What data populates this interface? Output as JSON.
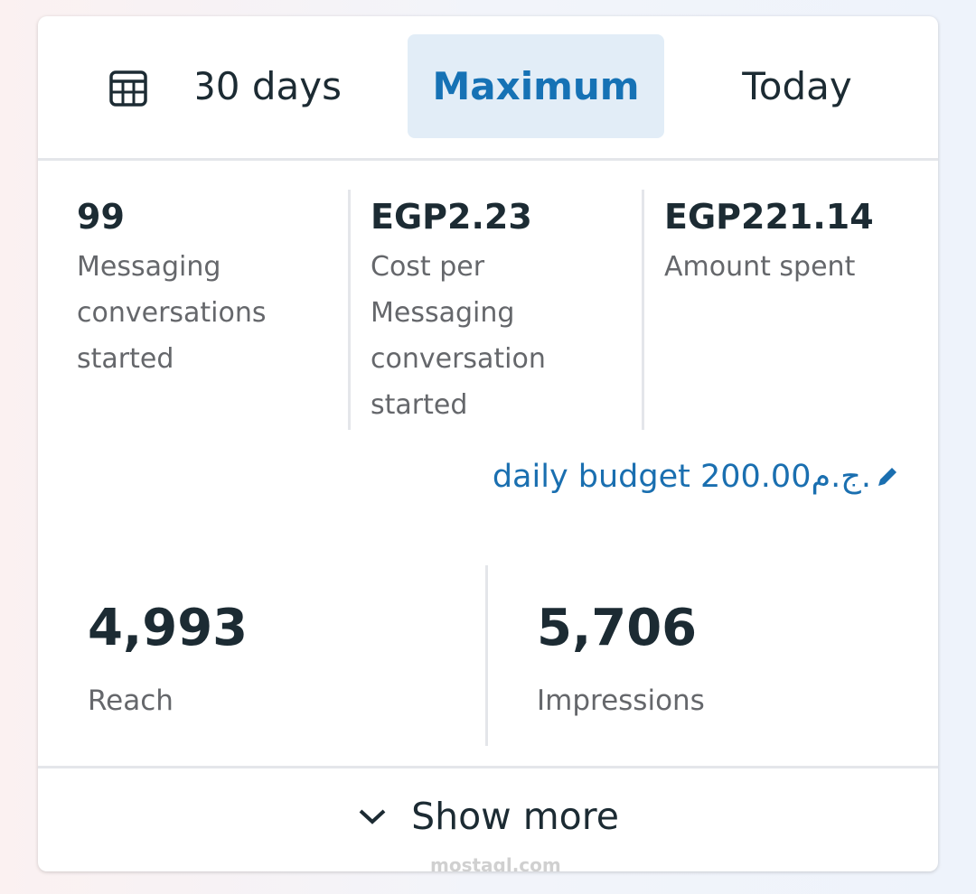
{
  "tabs": [
    {
      "label": "30 days"
    },
    {
      "label": "Maximum",
      "selected": true
    },
    {
      "label": "Today"
    }
  ],
  "metrics": [
    {
      "value": "99",
      "label": "Messaging conversations started"
    },
    {
      "value": "EGP2.23",
      "label": "Cost per Messaging conversation started"
    },
    {
      "value": "EGP221.14",
      "label": "Amount spent"
    }
  ],
  "budget": {
    "text": "daily budget 200.00ج.م."
  },
  "summary": [
    {
      "value": "4,993",
      "label": "Reach"
    },
    {
      "value": "5,706",
      "label": "Impressions"
    }
  ],
  "show_more": "Show more",
  "watermark": "mostaql.com"
}
